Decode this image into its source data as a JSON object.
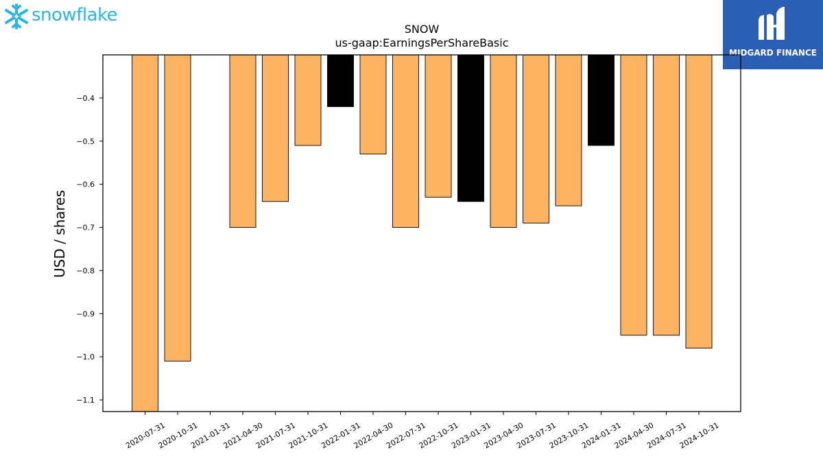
{
  "logos": {
    "left_text": "snowflake",
    "left_icon": "snowflake-icon",
    "right_text": "MIDGARD FINANCE",
    "right_icon": "midgard-m-icon",
    "left_color": "#29b5e8",
    "right_bg": "#2b5fb3"
  },
  "chart_data": {
    "type": "bar",
    "title": "SNOW",
    "subtitle": "us-gaap:EarningsPerShareBasic",
    "xlabel": "",
    "ylabel": "USD / shares",
    "categories": [
      "2020-07-31",
      "2020-10-31",
      "2021-01-31",
      "2021-04-30",
      "2021-07-31",
      "2021-10-31",
      "2022-01-31",
      "2022-04-30",
      "2022-07-31",
      "2022-10-31",
      "2023-01-31",
      "2023-04-30",
      "2023-07-31",
      "2023-10-31",
      "2024-01-31",
      "2024-04-30",
      "2024-07-31",
      "2024-10-31"
    ],
    "values": [
      -1.13,
      -1.01,
      null,
      -0.7,
      -0.64,
      -0.51,
      -0.42,
      -0.53,
      -0.7,
      -0.63,
      -0.64,
      -0.7,
      -0.69,
      -0.65,
      -0.51,
      -0.95,
      -0.95,
      -0.98
    ],
    "highlight": [
      false,
      false,
      false,
      false,
      false,
      false,
      true,
      false,
      false,
      false,
      true,
      false,
      false,
      false,
      true,
      false,
      false,
      false
    ],
    "ylim": [
      -1.127,
      -0.3
    ],
    "yticks": [
      -0.4,
      -0.5,
      -0.6,
      -0.7,
      -0.8,
      -0.9,
      -1.0,
      -1.1
    ],
    "ytick_labels": [
      "−0.4",
      "−0.5",
      "−0.6",
      "−0.7",
      "−0.8",
      "−0.9",
      "−1.0",
      "−1.1"
    ],
    "bar_color": "#fdb462",
    "highlight_color": "#000000",
    "grid": false,
    "legend": "none"
  }
}
